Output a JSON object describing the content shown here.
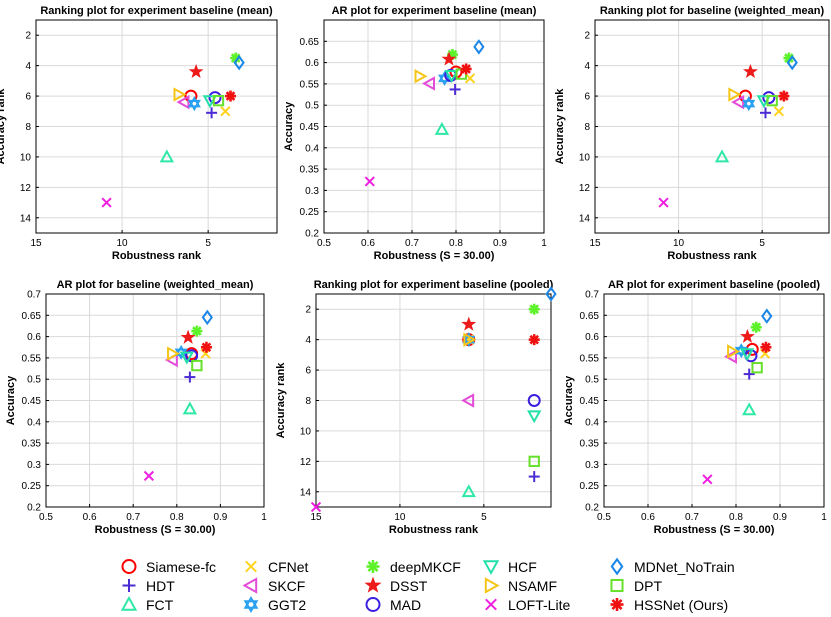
{
  "legend": [
    {
      "name": "Siamese-fc",
      "marker": "circle",
      "color": "#ff0000"
    },
    {
      "name": "HDT",
      "marker": "plus",
      "color": "#4b2bd4"
    },
    {
      "name": "FCT",
      "marker": "triangle-up",
      "color": "#2ee8a6"
    },
    {
      "name": "CFNet",
      "marker": "x",
      "color": "#ffd21f"
    },
    {
      "name": "SKCF",
      "marker": "triangle-left",
      "color": "#e34bd8"
    },
    {
      "name": "GGT2",
      "marker": "hexagram",
      "color": "#2aa0f0"
    },
    {
      "name": "deepMKCF",
      "marker": "asterisk",
      "color": "#5ef22a"
    },
    {
      "name": "DSST",
      "marker": "pentagram",
      "color": "#ee1b1b"
    },
    {
      "name": "MAD",
      "marker": "circle",
      "color": "#3b1fe0"
    },
    {
      "name": "HCF",
      "marker": "triangle-down",
      "color": "#22e0a8"
    },
    {
      "name": "NSAMF",
      "marker": "triangle-right",
      "color": "#f5c518"
    },
    {
      "name": "LOFT-Lite",
      "marker": "x",
      "color": "#f01ee0"
    },
    {
      "name": "MDNet_NoTrain",
      "marker": "diamond",
      "color": "#1a86e8"
    },
    {
      "name": "DPT",
      "marker": "square",
      "color": "#66e02a"
    },
    {
      "name": "HSSNet (Ours)",
      "marker": "asterisk",
      "color": "#f01010"
    }
  ],
  "chart_data": [
    {
      "type": "scatter",
      "title": "Ranking plot for experiment baseline (mean)",
      "xlabel": "Robustness rank",
      "ylabel": "Accuracy rank",
      "xlim": [
        15,
        1
      ],
      "ylim": [
        15,
        1
      ],
      "xticks": [
        15,
        10,
        5
      ],
      "yticks": [
        2,
        4,
        6,
        8,
        10,
        12,
        14
      ],
      "points": [
        {
          "tracker": "Siamese-fc",
          "x": 6.0,
          "y": 6.0
        },
        {
          "tracker": "HDT",
          "x": 4.8,
          "y": 7.1
        },
        {
          "tracker": "FCT",
          "x": 7.4,
          "y": 10.0
        },
        {
          "tracker": "CFNet",
          "x": 4.0,
          "y": 7.0
        },
        {
          "tracker": "SKCF",
          "x": 6.4,
          "y": 6.4
        },
        {
          "tracker": "GGT2",
          "x": 5.8,
          "y": 6.5
        },
        {
          "tracker": "deepMKCF",
          "x": 3.4,
          "y": 3.5
        },
        {
          "tracker": "DSST",
          "x": 5.7,
          "y": 4.4
        },
        {
          "tracker": "MAD",
          "x": 4.6,
          "y": 6.1
        },
        {
          "tracker": "HCF",
          "x": 4.9,
          "y": 6.3
        },
        {
          "tracker": "NSAMF",
          "x": 6.7,
          "y": 5.9
        },
        {
          "tracker": "LOFT-Lite",
          "x": 10.9,
          "y": 13.0
        },
        {
          "tracker": "MDNet_NoTrain",
          "x": 3.2,
          "y": 3.8
        },
        {
          "tracker": "DPT",
          "x": 4.4,
          "y": 6.3
        },
        {
          "tracker": "HSSNet (Ours)",
          "x": 3.7,
          "y": 6.0
        }
      ]
    },
    {
      "type": "scatter",
      "title": "AR plot for experiment baseline (mean)",
      "xlabel": "Robustness (S = 30.00)",
      "ylabel": "Accuracy",
      "xlim": [
        0.5,
        1
      ],
      "ylim": [
        0.2,
        0.7
      ],
      "xticks": [
        0.5,
        0.6,
        0.7,
        0.8,
        0.9,
        1
      ],
      "yticks": [
        0.2,
        0.25,
        0.3,
        0.35,
        0.4,
        0.45,
        0.5,
        0.55,
        0.6,
        0.65
      ],
      "points": [
        {
          "tracker": "Siamese-fc",
          "x": 0.8,
          "y": 0.578
        },
        {
          "tracker": "HDT",
          "x": 0.798,
          "y": 0.537
        },
        {
          "tracker": "FCT",
          "x": 0.768,
          "y": 0.443
        },
        {
          "tracker": "CFNet",
          "x": 0.832,
          "y": 0.563
        },
        {
          "tracker": "SKCF",
          "x": 0.74,
          "y": 0.551
        },
        {
          "tracker": "GGT2",
          "x": 0.774,
          "y": 0.563
        },
        {
          "tracker": "deepMKCF",
          "x": 0.792,
          "y": 0.619
        },
        {
          "tracker": "DSST",
          "x": 0.784,
          "y": 0.608
        },
        {
          "tracker": "MAD",
          "x": 0.788,
          "y": 0.57
        },
        {
          "tracker": "HCF",
          "x": 0.79,
          "y": 0.57
        },
        {
          "tracker": "NSAMF",
          "x": 0.718,
          "y": 0.568
        },
        {
          "tracker": "LOFT-Lite",
          "x": 0.604,
          "y": 0.321
        },
        {
          "tracker": "MDNet_NoTrain",
          "x": 0.852,
          "y": 0.637
        },
        {
          "tracker": "DPT",
          "x": 0.812,
          "y": 0.573
        },
        {
          "tracker": "HSSNet (Ours)",
          "x": 0.823,
          "y": 0.585
        }
      ]
    },
    {
      "type": "scatter",
      "title": "Ranking plot for baseline (weighted_mean)",
      "xlabel": "Robustness rank",
      "ylabel": "Accuracy rank",
      "xlim": [
        15,
        1
      ],
      "ylim": [
        15,
        1
      ],
      "xticks": [
        15,
        10,
        5
      ],
      "yticks": [
        2,
        4,
        6,
        8,
        10,
        12,
        14
      ],
      "points": [
        {
          "tracker": "Siamese-fc",
          "x": 6.0,
          "y": 6.0
        },
        {
          "tracker": "HDT",
          "x": 4.8,
          "y": 7.1
        },
        {
          "tracker": "FCT",
          "x": 7.4,
          "y": 10.0
        },
        {
          "tracker": "CFNet",
          "x": 4.0,
          "y": 7.0
        },
        {
          "tracker": "SKCF",
          "x": 6.4,
          "y": 6.4
        },
        {
          "tracker": "GGT2",
          "x": 5.8,
          "y": 6.5
        },
        {
          "tracker": "deepMKCF",
          "x": 3.4,
          "y": 3.5
        },
        {
          "tracker": "DSST",
          "x": 5.7,
          "y": 4.4
        },
        {
          "tracker": "MAD",
          "x": 4.6,
          "y": 6.1
        },
        {
          "tracker": "HCF",
          "x": 4.9,
          "y": 6.3
        },
        {
          "tracker": "NSAMF",
          "x": 6.7,
          "y": 5.9
        },
        {
          "tracker": "LOFT-Lite",
          "x": 10.9,
          "y": 13.0
        },
        {
          "tracker": "MDNet_NoTrain",
          "x": 3.2,
          "y": 3.8
        },
        {
          "tracker": "DPT",
          "x": 4.4,
          "y": 6.3
        },
        {
          "tracker": "HSSNet (Ours)",
          "x": 3.7,
          "y": 6.0
        }
      ]
    },
    {
      "type": "scatter",
      "title": "AR plot for baseline (weighted_mean)",
      "xlabel": "Robustness (S = 30.00)",
      "ylabel": "Accuracy",
      "xlim": [
        0.5,
        1
      ],
      "ylim": [
        0.2,
        0.7
      ],
      "xticks": [
        0.5,
        0.6,
        0.7,
        0.8,
        0.9,
        1
      ],
      "yticks": [
        0.2,
        0.25,
        0.3,
        0.35,
        0.4,
        0.45,
        0.5,
        0.55,
        0.6,
        0.65,
        0.7
      ],
      "points": [
        {
          "tracker": "Siamese-fc",
          "x": 0.834,
          "y": 0.56
        },
        {
          "tracker": "HDT",
          "x": 0.83,
          "y": 0.505
        },
        {
          "tracker": "FCT",
          "x": 0.83,
          "y": 0.43
        },
        {
          "tracker": "CFNet",
          "x": 0.866,
          "y": 0.56
        },
        {
          "tracker": "SKCF",
          "x": 0.79,
          "y": 0.545
        },
        {
          "tracker": "GGT2",
          "x": 0.81,
          "y": 0.563
        },
        {
          "tracker": "deepMKCF",
          "x": 0.846,
          "y": 0.613
        },
        {
          "tracker": "DSST",
          "x": 0.826,
          "y": 0.598
        },
        {
          "tracker": "MAD",
          "x": 0.834,
          "y": 0.555
        },
        {
          "tracker": "HCF",
          "x": 0.823,
          "y": 0.552
        },
        {
          "tracker": "NSAMF",
          "x": 0.79,
          "y": 0.56
        },
        {
          "tracker": "LOFT-Lite",
          "x": 0.736,
          "y": 0.273
        },
        {
          "tracker": "MDNet_NoTrain",
          "x": 0.87,
          "y": 0.645
        },
        {
          "tracker": "DPT",
          "x": 0.846,
          "y": 0.532
        },
        {
          "tracker": "HSSNet (Ours)",
          "x": 0.868,
          "y": 0.575
        }
      ]
    },
    {
      "type": "scatter",
      "title": "Ranking plot for experiment baseline (pooled)",
      "xlabel": "Robustness rank",
      "ylabel": "Accuracy rank",
      "xlim": [
        15,
        1
      ],
      "ylim": [
        15,
        1
      ],
      "xticks": [
        15,
        10,
        5
      ],
      "yticks": [
        2,
        4,
        6,
        8,
        10,
        12,
        14
      ],
      "points": [
        {
          "tracker": "Siamese-fc",
          "x": 5.9,
          "y": 4.0
        },
        {
          "tracker": "HDT",
          "x": 2.0,
          "y": 13.0
        },
        {
          "tracker": "FCT",
          "x": 5.9,
          "y": 14.0
        },
        {
          "tracker": "CFNet",
          "x": 5.9,
          "y": 4.0
        },
        {
          "tracker": "SKCF",
          "x": 5.9,
          "y": 8.0
        },
        {
          "tracker": "GGT2",
          "x": 5.9,
          "y": 4.0
        },
        {
          "tracker": "deepMKCF",
          "x": 2.0,
          "y": 2.0
        },
        {
          "tracker": "DSST",
          "x": 5.9,
          "y": 3.0
        },
        {
          "tracker": "MAD",
          "x": 2.0,
          "y": 8.0
        },
        {
          "tracker": "HCF",
          "x": 2.0,
          "y": 9.0
        },
        {
          "tracker": "NSAMF",
          "x": 5.9,
          "y": 4.0
        },
        {
          "tracker": "LOFT-Lite",
          "x": 15.0,
          "y": 15.0
        },
        {
          "tracker": "MDNet_NoTrain",
          "x": 1.0,
          "y": 1.0
        },
        {
          "tracker": "DPT",
          "x": 2.0,
          "y": 12.0
        },
        {
          "tracker": "HSSNet (Ours)",
          "x": 2.0,
          "y": 4.0
        }
      ]
    },
    {
      "type": "scatter",
      "title": "AR plot for experiment baseline (pooled)",
      "xlabel": "Robustness (S = 30.00)",
      "ylabel": "Accuracy",
      "xlim": [
        0.5,
        1
      ],
      "ylim": [
        0.2,
        0.7
      ],
      "xticks": [
        0.5,
        0.6,
        0.7,
        0.8,
        0.9,
        1
      ],
      "yticks": [
        0.2,
        0.25,
        0.3,
        0.35,
        0.4,
        0.45,
        0.5,
        0.55,
        0.6,
        0.65,
        0.7
      ],
      "points": [
        {
          "tracker": "Siamese-fc",
          "x": 0.837,
          "y": 0.57
        },
        {
          "tracker": "HDT",
          "x": 0.83,
          "y": 0.512
        },
        {
          "tracker": "FCT",
          "x": 0.83,
          "y": 0.428
        },
        {
          "tracker": "CFNet",
          "x": 0.866,
          "y": 0.56
        },
        {
          "tracker": "SKCF",
          "x": 0.79,
          "y": 0.553
        },
        {
          "tracker": "GGT2",
          "x": 0.812,
          "y": 0.567
        },
        {
          "tracker": "deepMKCF",
          "x": 0.846,
          "y": 0.622
        },
        {
          "tracker": "DSST",
          "x": 0.826,
          "y": 0.6
        },
        {
          "tracker": "MAD",
          "x": 0.834,
          "y": 0.555
        },
        {
          "tracker": "HCF",
          "x": 0.825,
          "y": 0.56
        },
        {
          "tracker": "NSAMF",
          "x": 0.792,
          "y": 0.565
        },
        {
          "tracker": "LOFT-Lite",
          "x": 0.735,
          "y": 0.265
        },
        {
          "tracker": "MDNet_NoTrain",
          "x": 0.87,
          "y": 0.648
        },
        {
          "tracker": "DPT",
          "x": 0.848,
          "y": 0.527
        },
        {
          "tracker": "HSSNet (Ours)",
          "x": 0.868,
          "y": 0.575
        }
      ]
    }
  ]
}
